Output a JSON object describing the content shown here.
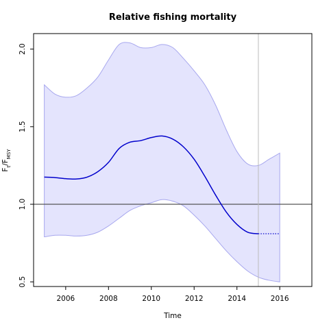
{
  "chart_data": {
    "type": "line",
    "title": "Relative fishing mortality",
    "xlabel": "Time",
    "ylabel": {
      "base": "F",
      "sub1": "t",
      "slash": "/F",
      "sub2": "MSY"
    },
    "xlim": [
      2004.5,
      2017.5
    ],
    "ylim": [
      0.47,
      2.1
    ],
    "xticks": [
      2006,
      2008,
      2010,
      2012,
      2014,
      2016
    ],
    "yticks": [
      0.5,
      1.0,
      1.5,
      2.0
    ],
    "ytick_labels": [
      "0.5",
      "1.0",
      "1.5",
      "2.0"
    ],
    "reference_hline": 1.0,
    "reference_vline": 2015,
    "colors": {
      "line": "#0000cc",
      "band_fill": "#e4e4fd",
      "band_edge": "#a7a7ee",
      "hline": "#555555",
      "vline": "#bbbbbb"
    },
    "estimate": {
      "x": [
        2005,
        2005.5,
        2006,
        2006.5,
        2007,
        2007.5,
        2008,
        2008.5,
        2009,
        2009.5,
        2010,
        2010.5,
        2011,
        2011.5,
        2012,
        2012.5,
        2013,
        2013.5,
        2014,
        2014.5,
        2015
      ],
      "y": [
        1.175,
        1.172,
        1.165,
        1.163,
        1.175,
        1.21,
        1.27,
        1.36,
        1.4,
        1.41,
        1.43,
        1.44,
        1.42,
        1.37,
        1.29,
        1.18,
        1.06,
        0.95,
        0.87,
        0.82,
        0.81
      ]
    },
    "forecast": {
      "x": [
        2015,
        2016
      ],
      "y": [
        0.81,
        0.81
      ]
    },
    "upper": {
      "x": [
        2005,
        2005.5,
        2006,
        2006.5,
        2007,
        2007.5,
        2008,
        2008.5,
        2009,
        2009.5,
        2010,
        2010.5,
        2011,
        2011.5,
        2012,
        2012.5,
        2013,
        2013.5,
        2014,
        2014.5,
        2015,
        2015.5,
        2016
      ],
      "y": [
        1.77,
        1.71,
        1.69,
        1.7,
        1.75,
        1.82,
        1.93,
        2.03,
        2.04,
        2.01,
        2.01,
        2.03,
        2.01,
        1.94,
        1.86,
        1.77,
        1.64,
        1.48,
        1.34,
        1.26,
        1.25,
        1.29,
        1.33
      ]
    },
    "lower": {
      "x": [
        2005,
        2005.5,
        2006,
        2006.5,
        2007,
        2007.5,
        2008,
        2008.5,
        2009,
        2009.5,
        2010,
        2010.5,
        2011,
        2011.5,
        2012,
        2012.5,
        2013,
        2013.5,
        2014,
        2014.5,
        2015,
        2015.5,
        2016
      ],
      "y": [
        0.79,
        0.8,
        0.8,
        0.795,
        0.8,
        0.82,
        0.86,
        0.91,
        0.96,
        0.99,
        1.01,
        1.03,
        1.02,
        0.99,
        0.93,
        0.86,
        0.78,
        0.7,
        0.63,
        0.57,
        0.53,
        0.51,
        0.5
      ]
    }
  }
}
